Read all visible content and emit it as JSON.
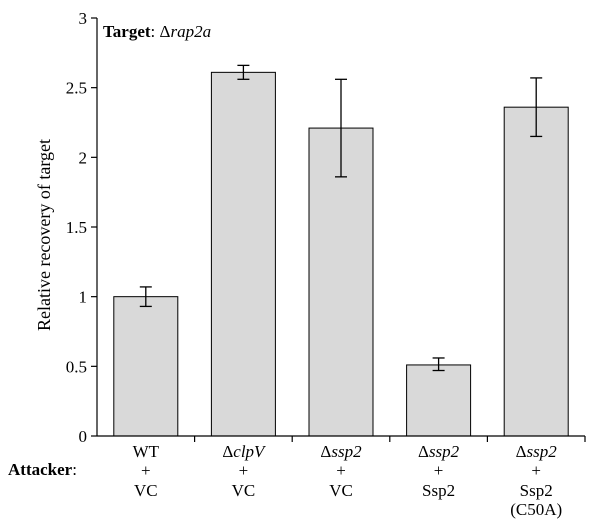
{
  "chart_data": {
    "type": "bar",
    "title_label": "Target",
    "title_sep": ": ",
    "title_prefix": "Δ",
    "title_italic": "rap2a",
    "ylabel": "Relative recovery of target",
    "row_label": "Attacker",
    "row_label_sep": ":",
    "ylim": [
      0,
      3
    ],
    "yticks": [
      "0",
      "0.5",
      "1",
      "1.5",
      "2",
      "2.5",
      "3"
    ],
    "categories": [
      {
        "strain_prefix": "",
        "strain_italic": "",
        "strain_plain": "WT",
        "plus": "+",
        "plasmid": "VC",
        "extra": ""
      },
      {
        "strain_prefix": "Δ",
        "strain_italic": "clpV",
        "strain_plain": "",
        "plus": "+",
        "plasmid": "VC",
        "extra": ""
      },
      {
        "strain_prefix": "Δ",
        "strain_italic": "ssp2",
        "strain_plain": "",
        "plus": "+",
        "plasmid": "VC",
        "extra": ""
      },
      {
        "strain_prefix": "Δ",
        "strain_italic": "ssp2",
        "strain_plain": "",
        "plus": "+",
        "plasmid": "Ssp2",
        "extra": ""
      },
      {
        "strain_prefix": "Δ",
        "strain_italic": "ssp2",
        "strain_plain": "",
        "plus": "+",
        "plasmid": "Ssp2",
        "extra": "(C50A)"
      }
    ],
    "values": [
      1.0,
      2.61,
      2.21,
      0.51,
      2.36
    ],
    "error_low": [
      0.93,
      2.56,
      1.86,
      0.47,
      2.15
    ],
    "error_high": [
      1.07,
      2.66,
      2.56,
      0.56,
      2.57
    ],
    "bar_color": "#d9d9d9",
    "grid": false
  }
}
